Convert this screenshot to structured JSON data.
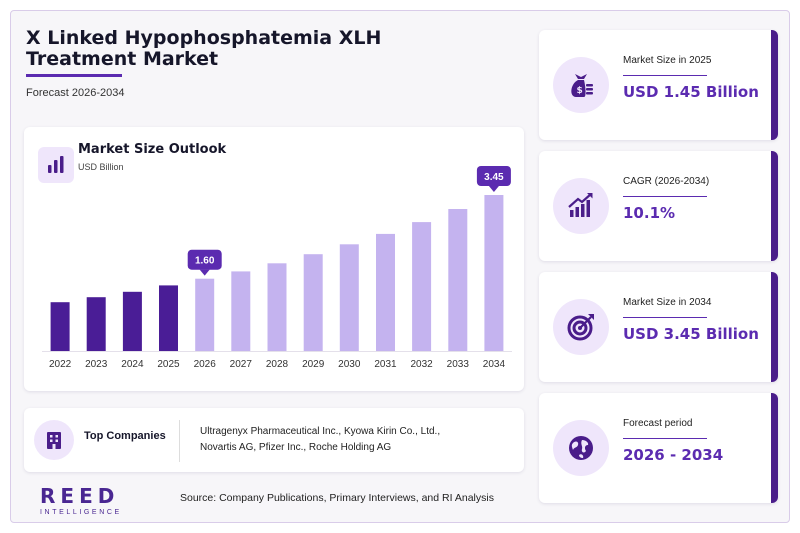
{
  "header": {
    "title": "X Linked Hypophosphatemia XLH Treatment Market",
    "subtitle": "Forecast 2026-2034"
  },
  "chart_card": {
    "title": "Market Size Outlook",
    "unit": "USD Billion",
    "icon": "bar-chart-icon"
  },
  "chart_data": {
    "type": "bar",
    "categories": [
      "2022",
      "2023",
      "2024",
      "2025",
      "2026",
      "2027",
      "2028",
      "2029",
      "2030",
      "2031",
      "2032",
      "2033",
      "2034"
    ],
    "values": [
      1.08,
      1.19,
      1.31,
      1.45,
      1.6,
      1.76,
      1.94,
      2.14,
      2.36,
      2.59,
      2.85,
      3.14,
      3.45
    ],
    "historical_years": [
      "2022",
      "2023",
      "2024",
      "2025"
    ],
    "labeled_points": [
      {
        "x": "2026",
        "label": "1.60"
      },
      {
        "x": "2034",
        "label": "3.45"
      }
    ],
    "ylim": [
      0,
      3.45
    ],
    "grid": false,
    "legend": "none",
    "colors": {
      "historical": "#4a1d96",
      "forecast": "#c4b3ef",
      "label_bg": "#5b2bb0"
    }
  },
  "companies": {
    "label": "Top Companies",
    "icon": "building-icon",
    "list_line1": "Ultragenyx Pharmaceutical Inc., Kyowa Kirin Co., Ltd.,",
    "list_line2": "Novartis AG, Pfizer Inc., Roche Holding AG"
  },
  "logo": {
    "main": "REED",
    "sub": "INTELLIGENCE"
  },
  "source": "Source: Company Publications, Primary Interviews, and RI Analysis",
  "stats": [
    {
      "label": "Market Size in 2025",
      "value": "USD 1.45 Billion",
      "icon": "money-bag-icon"
    },
    {
      "label": "CAGR (2026-2034)",
      "value": "10.1%",
      "icon": "growth-chart-icon"
    },
    {
      "label": "Market Size in 2034",
      "value": "USD 3.45 Billion",
      "icon": "target-icon"
    },
    {
      "label": "Forecast period",
      "value": "2026 - 2034",
      "icon": "globe-icon"
    }
  ]
}
